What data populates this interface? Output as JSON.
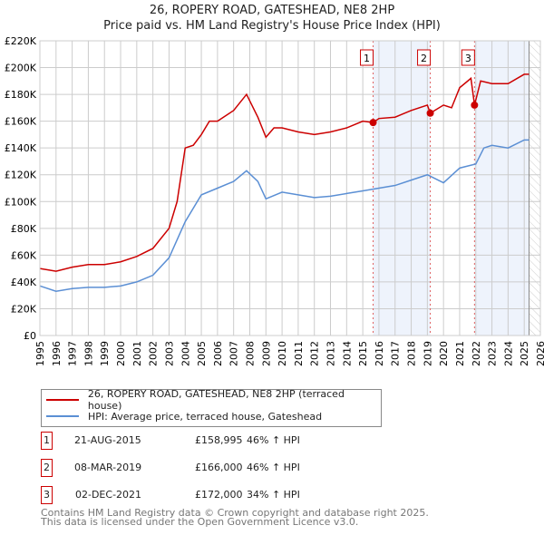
{
  "chart_data": {
    "type": "line",
    "title": "26, ROPERY ROAD, GATESHEAD, NE8 2HP",
    "subtitle": "Price paid vs. HM Land Registry's House Price Index (HPI)",
    "xlim": [
      1995,
      2026
    ],
    "ylim": [
      0,
      220000
    ],
    "x_ticks": [
      "1995",
      "1996",
      "1997",
      "1998",
      "1999",
      "2000",
      "2001",
      "2002",
      "2003",
      "2004",
      "2005",
      "2006",
      "2007",
      "2008",
      "2009",
      "2010",
      "2011",
      "2012",
      "2013",
      "2014",
      "2015",
      "2016",
      "2017",
      "2018",
      "2019",
      "2020",
      "2021",
      "2022",
      "2023",
      "2024",
      "2025",
      "2026"
    ],
    "y_ticks": [
      "£0",
      "£20K",
      "£40K",
      "£60K",
      "£80K",
      "£100K",
      "£120K",
      "£140K",
      "£160K",
      "£180K",
      "£200K",
      "£220K"
    ],
    "grid": true,
    "series": [
      {
        "name": "26, ROPERY ROAD, GATESHEAD, NE8 2HP (terraced house)",
        "color": "#cc0000",
        "points": [
          [
            1995,
            50000
          ],
          [
            1996,
            48000
          ],
          [
            1997,
            51000
          ],
          [
            1998,
            53000
          ],
          [
            1999,
            53000
          ],
          [
            2000,
            55000
          ],
          [
            2001,
            59000
          ],
          [
            2002,
            65000
          ],
          [
            2003,
            80000
          ],
          [
            2003.5,
            100000
          ],
          [
            2004,
            140000
          ],
          [
            2004.5,
            142000
          ],
          [
            2005,
            150000
          ],
          [
            2005.5,
            160000
          ],
          [
            2006,
            160000
          ],
          [
            2007,
            168000
          ],
          [
            2007.8,
            180000
          ],
          [
            2008.5,
            163000
          ],
          [
            2009,
            148000
          ],
          [
            2009.5,
            155000
          ],
          [
            2010,
            155000
          ],
          [
            2011,
            152000
          ],
          [
            2012,
            150000
          ],
          [
            2013,
            152000
          ],
          [
            2014,
            155000
          ],
          [
            2015,
            160000
          ],
          [
            2015.64,
            158995
          ],
          [
            2016,
            162000
          ],
          [
            2017,
            163000
          ],
          [
            2018,
            168000
          ],
          [
            2019,
            172000
          ],
          [
            2019.18,
            166000
          ],
          [
            2020,
            172000
          ],
          [
            2020.5,
            170000
          ],
          [
            2021,
            185000
          ],
          [
            2021.7,
            192000
          ],
          [
            2021.92,
            172000
          ],
          [
            2022.3,
            190000
          ],
          [
            2023,
            188000
          ],
          [
            2024,
            188000
          ],
          [
            2025,
            195000
          ],
          [
            2025.3,
            195000
          ]
        ]
      },
      {
        "name": "HPI: Average price, terraced house, Gateshead",
        "color": "#5b8fd4",
        "points": [
          [
            1995,
            37000
          ],
          [
            1996,
            33000
          ],
          [
            1997,
            35000
          ],
          [
            1998,
            36000
          ],
          [
            1999,
            36000
          ],
          [
            2000,
            37000
          ],
          [
            2001,
            40000
          ],
          [
            2002,
            45000
          ],
          [
            2003,
            58000
          ],
          [
            2004,
            85000
          ],
          [
            2005,
            105000
          ],
          [
            2006,
            110000
          ],
          [
            2007,
            115000
          ],
          [
            2007.8,
            123000
          ],
          [
            2008.5,
            115000
          ],
          [
            2009,
            102000
          ],
          [
            2010,
            107000
          ],
          [
            2011,
            105000
          ],
          [
            2012,
            103000
          ],
          [
            2013,
            104000
          ],
          [
            2014,
            106000
          ],
          [
            2015,
            108000
          ],
          [
            2016,
            110000
          ],
          [
            2017,
            112000
          ],
          [
            2018,
            116000
          ],
          [
            2019,
            120000
          ],
          [
            2020,
            114000
          ],
          [
            2021,
            125000
          ],
          [
            2022,
            128000
          ],
          [
            2022.5,
            140000
          ],
          [
            2023,
            142000
          ],
          [
            2024,
            140000
          ],
          [
            2025,
            146000
          ],
          [
            2025.3,
            146000
          ]
        ]
      }
    ],
    "sales": [
      {
        "label": "1",
        "x": 2015.64,
        "price": 158995,
        "date": "21-AUG-2015",
        "price_text": "£158,995",
        "hpi": "46% ↑ HPI"
      },
      {
        "label": "2",
        "x": 2019.18,
        "price": 166000,
        "date": "08-MAR-2019",
        "price_text": "£166,000",
        "hpi": "46% ↑ HPI"
      },
      {
        "label": "3",
        "x": 2021.92,
        "price": 172000,
        "date": "02-DEC-2021",
        "price_text": "£172,000",
        "hpi": "34% ↑ HPI"
      }
    ],
    "data_end": 2025.3
  },
  "footer": {
    "line1": "Contains HM Land Registry data © Crown copyright and database right 2025.",
    "line2": "This data is licensed under the Open Government Licence v3.0."
  }
}
